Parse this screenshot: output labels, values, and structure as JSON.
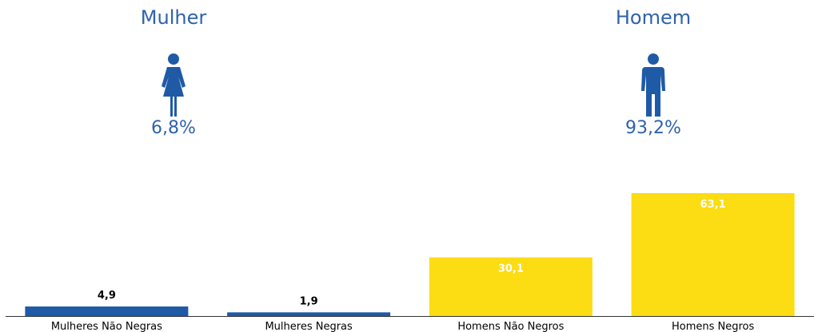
{
  "header": {
    "female": {
      "title": "Mulher",
      "percent": "6,8%",
      "icon": "female-person-icon"
    },
    "male": {
      "title": "Homem",
      "percent": "93,2%",
      "icon": "male-person-icon"
    }
  },
  "colors": {
    "blue": "#1f5aa6",
    "yellow": "#fcdc12",
    "text_blue": "#2f62ad",
    "axis": "#333333"
  },
  "chart_data": {
    "type": "bar",
    "categories": [
      "Mulheres Não Negras",
      "Mulheres Negras",
      "Homens Não Negros",
      "Homens Negros"
    ],
    "values": [
      4.9,
      1.9,
      30.1,
      63.1
    ],
    "labels": [
      "4,9",
      "1,9",
      "30,1",
      "63,1"
    ],
    "colors": [
      "#1f5aa6",
      "#1f5aa6",
      "#fcdc12",
      "#fcdc12"
    ],
    "title": "",
    "xlabel": "",
    "ylabel": "",
    "ylim": [
      0,
      100
    ],
    "grid": false
  }
}
